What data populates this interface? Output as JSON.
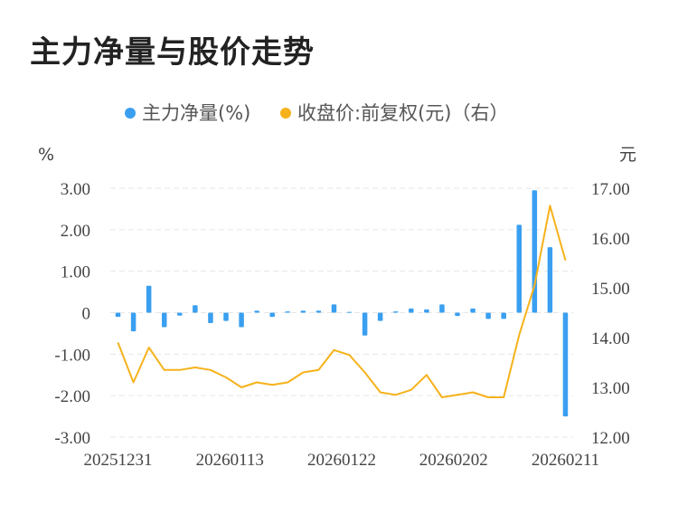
{
  "chart_data": {
    "type": "bar",
    "title": "主力净量与股价走势",
    "series": [
      {
        "name": "主力净量(%)",
        "type": "bar",
        "axis": "left",
        "color": "#3a9ff0",
        "values": [
          -0.1,
          -0.45,
          0.65,
          -0.35,
          -0.07,
          0.18,
          -0.25,
          -0.2,
          -0.35,
          0.05,
          -0.1,
          0.03,
          0.05,
          0.05,
          0.2,
          0.02,
          -0.55,
          -0.2,
          0.03,
          0.1,
          0.08,
          0.2,
          -0.08,
          0.1,
          -0.15,
          -0.15,
          2.12,
          2.95,
          1.58,
          -2.5
        ]
      },
      {
        "name": "收盘价:前复权(元)（右）",
        "type": "line",
        "axis": "right",
        "color": "#f6b21b",
        "values": [
          13.9,
          13.1,
          13.8,
          13.35,
          13.35,
          13.4,
          13.35,
          13.2,
          13.0,
          13.1,
          13.05,
          13.1,
          13.3,
          13.35,
          13.75,
          13.65,
          13.3,
          12.9,
          12.85,
          12.95,
          13.25,
          12.8,
          12.85,
          12.9,
          12.8,
          12.8,
          14.05,
          15.05,
          16.65,
          15.55
        ]
      }
    ],
    "x_tick_labels": [
      "20251231",
      "20260113",
      "20260122",
      "20260202",
      "20260211"
    ],
    "y_left": {
      "label": "%",
      "ylim": [
        -3.0,
        3.0
      ],
      "ticks": [
        "3.00",
        "2.00",
        "1.00",
        "0",
        "-1.00",
        "-2.00",
        "-3.00"
      ]
    },
    "y_right": {
      "label": "元",
      "ylim": [
        12.0,
        17.0
      ],
      "ticks": [
        "17.00",
        "16.00",
        "15.00",
        "14.00",
        "13.00",
        "12.00"
      ]
    },
    "grid": true,
    "legend_position": "top-center"
  }
}
